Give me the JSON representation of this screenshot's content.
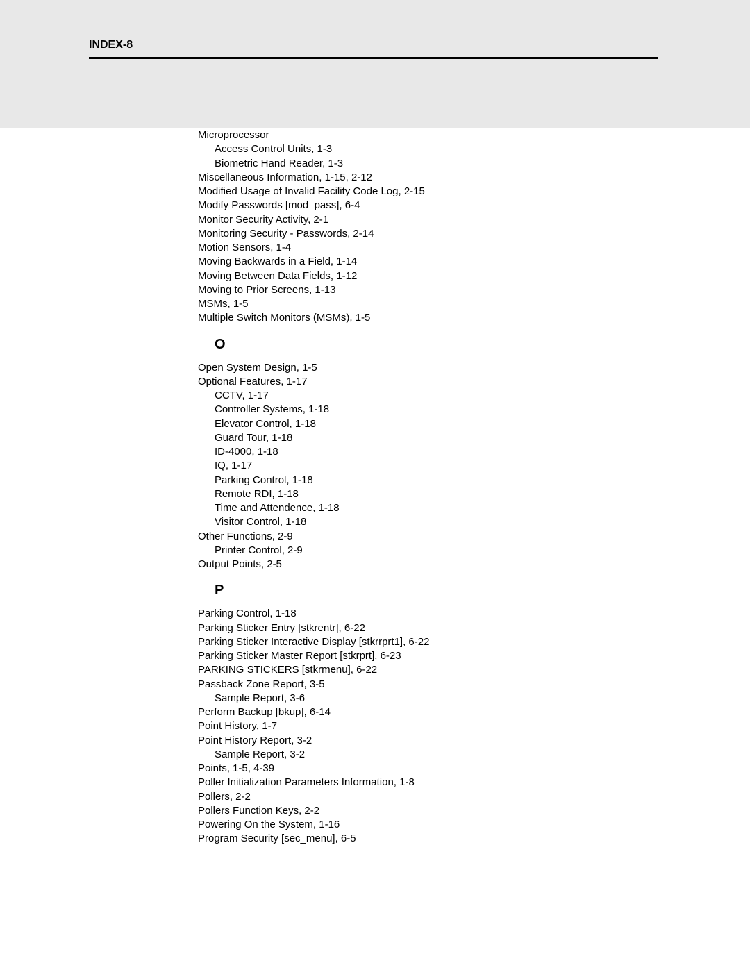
{
  "header": "INDEX-8",
  "entries": [
    {
      "type": "entry",
      "indent": 0,
      "text": "Microprocessor"
    },
    {
      "type": "entry",
      "indent": 1,
      "text": "Access Control Units,  1-3"
    },
    {
      "type": "entry",
      "indent": 1,
      "text": "Biometric Hand Reader,  1-3"
    },
    {
      "type": "entry",
      "indent": 0,
      "text": "Miscellaneous Information,  1-15,  2-12"
    },
    {
      "type": "entry",
      "indent": 0,
      "text": "Modified Usage of Invalid Facility Code Log,  2-15"
    },
    {
      "type": "entry",
      "indent": 0,
      "text": "Modify Passwords [mod_pass],  6-4"
    },
    {
      "type": "entry",
      "indent": 0,
      "text": "Monitor Security Activity,  2-1"
    },
    {
      "type": "entry",
      "indent": 0,
      "text": "Monitoring Security - Passwords,  2-14"
    },
    {
      "type": "entry",
      "indent": 0,
      "text": "Motion Sensors,  1-4"
    },
    {
      "type": "entry",
      "indent": 0,
      "text": "Moving Backwards in a Field,  1-14"
    },
    {
      "type": "entry",
      "indent": 0,
      "text": "Moving Between Data Fields,  1-12"
    },
    {
      "type": "entry",
      "indent": 0,
      "text": "Moving to Prior Screens,  1-13"
    },
    {
      "type": "entry",
      "indent": 0,
      "text": "MSMs,  1-5"
    },
    {
      "type": "entry",
      "indent": 0,
      "text": "Multiple Switch Monitors (MSMs),  1-5"
    },
    {
      "type": "letter",
      "text": "O"
    },
    {
      "type": "entry",
      "indent": 0,
      "text": "Open System Design,  1-5"
    },
    {
      "type": "entry",
      "indent": 0,
      "text": "Optional Features,  1-17"
    },
    {
      "type": "entry",
      "indent": 1,
      "text": "CCTV,  1-17"
    },
    {
      "type": "entry",
      "indent": 1,
      "text": "Controller Systems,  1-18"
    },
    {
      "type": "entry",
      "indent": 1,
      "text": "Elevator Control,  1-18"
    },
    {
      "type": "entry",
      "indent": 1,
      "text": "Guard Tour,  1-18"
    },
    {
      "type": "entry",
      "indent": 1,
      "text": "ID-4000,  1-18"
    },
    {
      "type": "entry",
      "indent": 1,
      "text": "IQ,  1-17"
    },
    {
      "type": "entry",
      "indent": 1,
      "text": "Parking Control,  1-18"
    },
    {
      "type": "entry",
      "indent": 1,
      "text": "Remote RDI,  1-18"
    },
    {
      "type": "entry",
      "indent": 1,
      "text": "Time and Attendence,  1-18"
    },
    {
      "type": "entry",
      "indent": 1,
      "text": "Visitor Control,  1-18"
    },
    {
      "type": "entry",
      "indent": 0,
      "text": "Other Functions,  2-9"
    },
    {
      "type": "entry",
      "indent": 1,
      "text": "Printer Control,  2-9"
    },
    {
      "type": "entry",
      "indent": 0,
      "text": "Output Points,  2-5"
    },
    {
      "type": "letter",
      "text": "P"
    },
    {
      "type": "entry",
      "indent": 0,
      "text": "Parking Control,  1-18"
    },
    {
      "type": "entry",
      "indent": 0,
      "text": "Parking Sticker Entry [stkrentr],  6-22"
    },
    {
      "type": "entry",
      "indent": 0,
      "text": "Parking Sticker Interactive Display [stkrrprt1],  6-22"
    },
    {
      "type": "entry",
      "indent": 0,
      "text": "Parking Sticker Master Report [stkrprt],  6-23"
    },
    {
      "type": "entry",
      "indent": 0,
      "text": "PARKING STICKERS [stkrmenu],  6-22"
    },
    {
      "type": "entry",
      "indent": 0,
      "text": "Passback Zone Report,  3-5"
    },
    {
      "type": "entry",
      "indent": 1,
      "text": "Sample Report,  3-6"
    },
    {
      "type": "entry",
      "indent": 0,
      "text": "Perform Backup [bkup],  6-14"
    },
    {
      "type": "entry",
      "indent": 0,
      "text": "Point History,  1-7"
    },
    {
      "type": "entry",
      "indent": 0,
      "text": "Point History Report,  3-2"
    },
    {
      "type": "entry",
      "indent": 1,
      "text": "Sample Report,  3-2"
    },
    {
      "type": "entry",
      "indent": 0,
      "text": "Points,  1-5,  4-39"
    },
    {
      "type": "entry",
      "indent": 0,
      "text": "Poller Initialization Parameters Information,  1-8"
    },
    {
      "type": "entry",
      "indent": 0,
      "text": "Pollers,  2-2"
    },
    {
      "type": "entry",
      "indent": 0,
      "text": "Pollers Function Keys,  2-2"
    },
    {
      "type": "entry",
      "indent": 0,
      "text": "Powering On the System,  1-16"
    },
    {
      "type": "entry",
      "indent": 0,
      "text": "Program Security [sec_menu],  6-5"
    }
  ]
}
